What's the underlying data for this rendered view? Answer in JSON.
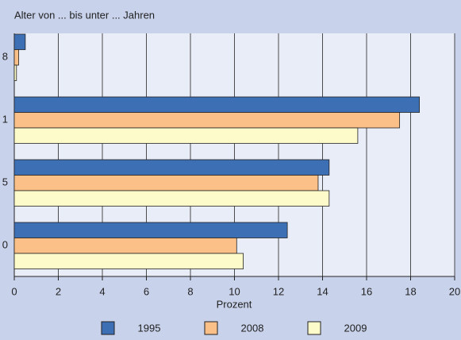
{
  "chart_data": {
    "type": "hbar",
    "title": "Alter von ... bis unter ... Jahren",
    "x_label": "Prozent",
    "categories": [
      "8",
      "1",
      "5",
      "0"
    ],
    "series": [
      {
        "name": "1995",
        "color": "#3d6fb5",
        "values": [
          0.5,
          18.4,
          14.3,
          12.4
        ]
      },
      {
        "name": "2008",
        "color": "#fbbf88",
        "values": [
          0.2,
          17.5,
          13.8,
          10.1
        ]
      },
      {
        "name": "2009",
        "color": "#fdfbca",
        "values": [
          0.1,
          15.6,
          14.3,
          10.4
        ]
      }
    ],
    "xlim": [
      0,
      20
    ],
    "xticks": [
      0,
      2,
      4,
      6,
      8,
      10,
      12,
      14,
      16,
      18,
      20
    ],
    "grid": true,
    "legend": "bottom"
  }
}
